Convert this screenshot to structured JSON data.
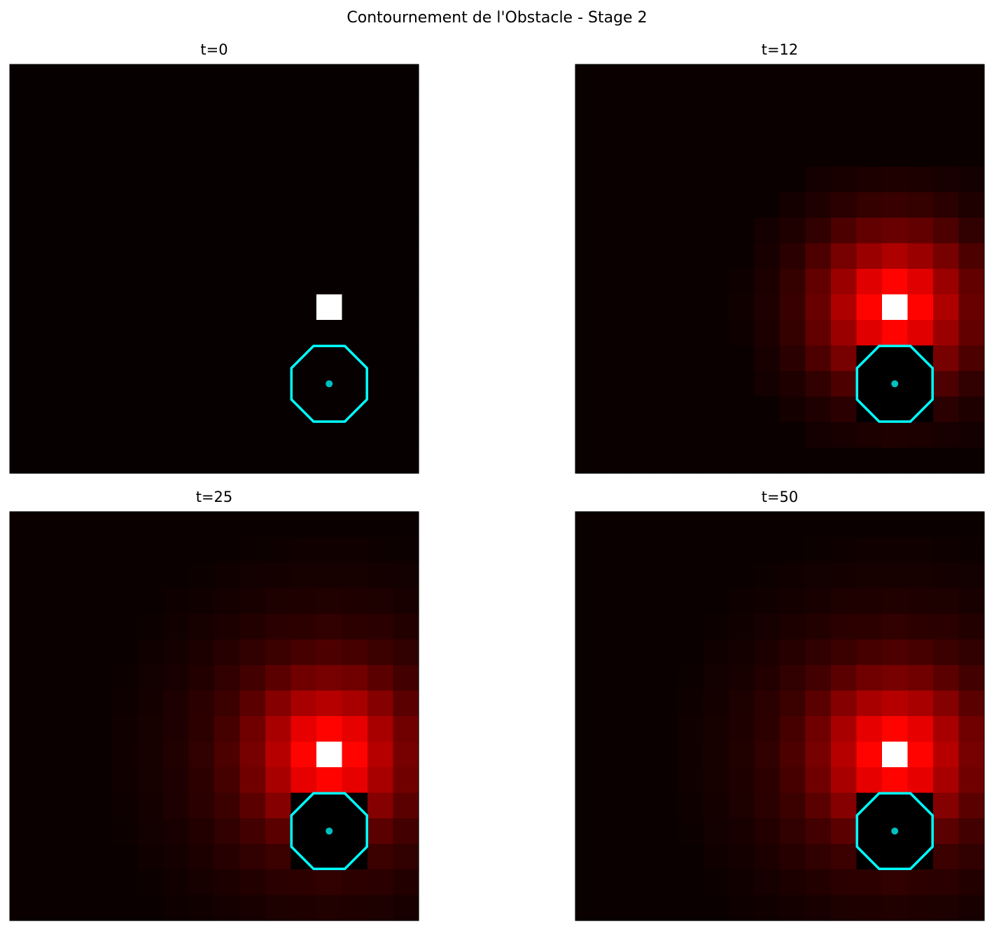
{
  "title": "Contournement de l'Obstacle - Stage 2",
  "chart_data": [
    {
      "type": "heatmap",
      "title": "t=0",
      "cmap": "hot",
      "vmin": 0,
      "vmax": 1,
      "obstacle": {
        "x": 12,
        "y": 12,
        "radius": 1.6,
        "color": "#00ffff"
      },
      "agent": {
        "x": 12,
        "y": 12,
        "color": "#00bfbf"
      },
      "values": [
        [
          0.01,
          0.01,
          0.01,
          0.01,
          0.01,
          0.01,
          0.01,
          0.01,
          0.01,
          0.01,
          0.01,
          0.01,
          0.01,
          0.01,
          0.01,
          0.01
        ],
        [
          0.01,
          0.01,
          0.01,
          0.01,
          0.01,
          0.01,
          0.01,
          0.01,
          0.01,
          0.01,
          0.01,
          0.01,
          0.01,
          0.01,
          0.01,
          0.01
        ],
        [
          0.01,
          0.01,
          0.01,
          0.01,
          0.01,
          0.01,
          0.01,
          0.01,
          0.01,
          0.01,
          0.01,
          0.01,
          0.01,
          0.01,
          0.01,
          0.01
        ],
        [
          0.01,
          0.01,
          0.01,
          0.01,
          0.01,
          0.01,
          0.01,
          0.01,
          0.01,
          0.01,
          0.01,
          0.01,
          0.01,
          0.01,
          0.01,
          0.01
        ],
        [
          0.01,
          0.01,
          0.01,
          0.01,
          0.01,
          0.01,
          0.01,
          0.01,
          0.01,
          0.01,
          0.01,
          0.01,
          0.01,
          0.01,
          0.01,
          0.01
        ],
        [
          0.01,
          0.01,
          0.01,
          0.01,
          0.01,
          0.01,
          0.01,
          0.01,
          0.01,
          0.01,
          0.01,
          0.01,
          0.01,
          0.01,
          0.01,
          0.01
        ],
        [
          0.01,
          0.01,
          0.01,
          0.01,
          0.01,
          0.01,
          0.01,
          0.01,
          0.01,
          0.01,
          0.01,
          0.01,
          0.01,
          0.01,
          0.01,
          0.01
        ],
        [
          0.01,
          0.01,
          0.01,
          0.01,
          0.01,
          0.01,
          0.01,
          0.01,
          0.01,
          0.01,
          0.01,
          0.01,
          0.01,
          0.01,
          0.01,
          0.01
        ],
        [
          0.01,
          0.01,
          0.01,
          0.01,
          0.01,
          0.01,
          0.01,
          0.01,
          0.01,
          0.01,
          0.01,
          0.01,
          0.01,
          0.01,
          0.01,
          0.01
        ],
        [
          0.01,
          0.01,
          0.01,
          0.01,
          0.01,
          0.01,
          0.01,
          0.01,
          0.01,
          0.01,
          0.01,
          0.01,
          1,
          0.01,
          0.01,
          0.01
        ],
        [
          0.01,
          0.01,
          0.01,
          0.01,
          0.01,
          0.01,
          0.01,
          0.01,
          0.01,
          0.01,
          0.01,
          0.01,
          0.01,
          0.01,
          0.01,
          0.01
        ],
        [
          0.01,
          0.01,
          0.01,
          0.01,
          0.01,
          0.01,
          0.01,
          0.01,
          0.01,
          0.01,
          0.01,
          0.01,
          0.01,
          0.01,
          0.01,
          0.01
        ],
        [
          0.01,
          0.01,
          0.01,
          0.01,
          0.01,
          0.01,
          0.01,
          0.01,
          0.01,
          0.01,
          0.01,
          0.01,
          0.01,
          0.01,
          0.01,
          0.01
        ],
        [
          0.01,
          0.01,
          0.01,
          0.01,
          0.01,
          0.01,
          0.01,
          0.01,
          0.01,
          0.01,
          0.01,
          0.01,
          0.01,
          0.01,
          0.01,
          0.01
        ],
        [
          0.01,
          0.01,
          0.01,
          0.01,
          0.01,
          0.01,
          0.01,
          0.01,
          0.01,
          0.01,
          0.01,
          0.01,
          0.01,
          0.01,
          0.01,
          0.01
        ],
        [
          0.01,
          0.01,
          0.01,
          0.01,
          0.01,
          0.01,
          0.01,
          0.01,
          0.01,
          0.01,
          0.01,
          0.01,
          0.01,
          0.01,
          0.01,
          0.01
        ]
      ]
    },
    {
      "type": "heatmap",
      "title": "t=12",
      "cmap": "hot",
      "vmin": 0,
      "vmax": 1,
      "obstacle": {
        "x": 12,
        "y": 12,
        "radius": 1.6,
        "color": "#00ffff"
      },
      "agent": {
        "x": 12,
        "y": 12,
        "color": "#00bfbf"
      },
      "values": [
        [
          0.015,
          0.015,
          0.015,
          0.015,
          0.015,
          0.015,
          0.015,
          0.015,
          0.015,
          0.015,
          0.015,
          0.015,
          0.015,
          0.015,
          0.015,
          0.015
        ],
        [
          0.015,
          0.015,
          0.015,
          0.015,
          0.015,
          0.015,
          0.015,
          0.015,
          0.015,
          0.015,
          0.015,
          0.015,
          0.015,
          0.015,
          0.015,
          0.015
        ],
        [
          0.015,
          0.015,
          0.015,
          0.015,
          0.015,
          0.015,
          0.015,
          0.015,
          0.015,
          0.015,
          0.015,
          0.015,
          0.015,
          0.015,
          0.015,
          0.015
        ],
        [
          0.015,
          0.015,
          0.015,
          0.015,
          0.015,
          0.015,
          0.015,
          0.015,
          0.015,
          0.015,
          0.015,
          0.015,
          0.015,
          0.015,
          0.015,
          0.015
        ],
        [
          0.015,
          0.015,
          0.015,
          0.015,
          0.015,
          0.015,
          0.015,
          0.015,
          0.015,
          0.028,
          0.035,
          0.04,
          0.045,
          0.04,
          0.035,
          0.028
        ],
        [
          0.015,
          0.015,
          0.015,
          0.015,
          0.015,
          0.015,
          0.015,
          0.015,
          0.03,
          0.045,
          0.06,
          0.075,
          0.08,
          0.075,
          0.06,
          0.045
        ],
        [
          0.015,
          0.015,
          0.015,
          0.015,
          0.015,
          0.015,
          0.015,
          0.028,
          0.045,
          0.07,
          0.11,
          0.14,
          0.15,
          0.14,
          0.11,
          0.07
        ],
        [
          0.015,
          0.015,
          0.015,
          0.015,
          0.015,
          0.015,
          0.015,
          0.035,
          0.06,
          0.11,
          0.17,
          0.22,
          0.25,
          0.22,
          0.17,
          0.11
        ],
        [
          0.015,
          0.015,
          0.015,
          0.015,
          0.015,
          0.015,
          0.02,
          0.04,
          0.075,
          0.14,
          0.22,
          0.32,
          0.37,
          0.32,
          0.22,
          0.14
        ],
        [
          0.015,
          0.015,
          0.015,
          0.015,
          0.015,
          0.015,
          0.025,
          0.045,
          0.08,
          0.15,
          0.25,
          0.37,
          1,
          0.37,
          0.25,
          0.15
        ],
        [
          0.015,
          0.015,
          0.015,
          0.015,
          0.015,
          0.015,
          0.02,
          0.04,
          0.075,
          0.14,
          0.22,
          0.32,
          0.37,
          0.32,
          0.22,
          0.14
        ],
        [
          0.015,
          0.015,
          0.015,
          0.015,
          0.015,
          0.015,
          0.015,
          0.035,
          0.06,
          0.11,
          0.17,
          0,
          0,
          0,
          0.17,
          0.11
        ],
        [
          0.015,
          0.015,
          0.015,
          0.015,
          0.015,
          0.015,
          0.015,
          0.028,
          0.045,
          0.07,
          0.11,
          0,
          0,
          0,
          0.11,
          0.07
        ],
        [
          0.015,
          0.015,
          0.015,
          0.015,
          0.015,
          0.015,
          0.015,
          0.015,
          0.03,
          0.045,
          0.06,
          0,
          0,
          0,
          0.06,
          0.045
        ],
        [
          0.015,
          0.015,
          0.015,
          0.015,
          0.015,
          0.015,
          0.015,
          0.015,
          0.015,
          0.028,
          0.035,
          0.04,
          0.045,
          0.04,
          0.035,
          0.028
        ],
        [
          0.015,
          0.015,
          0.015,
          0.015,
          0.015,
          0.015,
          0.015,
          0.015,
          0.015,
          0.015,
          0.015,
          0.015,
          0.015,
          0.015,
          0.015,
          0.015
        ]
      ]
    },
    {
      "type": "heatmap",
      "title": "t=25",
      "cmap": "hot",
      "vmin": 0,
      "vmax": 1,
      "obstacle": {
        "x": 12,
        "y": 12,
        "radius": 1.6,
        "color": "#00ffff"
      },
      "agent": {
        "x": 12,
        "y": 12,
        "color": "#00bfbf"
      },
      "values": [
        [
          0.015,
          0.015,
          0.015,
          0.015,
          0.015,
          0.015,
          0.015,
          0.015,
          0.015,
          0.015,
          0.015,
          0.015,
          0.015,
          0.015,
          0.015,
          0.015
        ],
        [
          0.015,
          0.015,
          0.015,
          0.015,
          0.015,
          0.015,
          0.015,
          0.015,
          0.015,
          0.019,
          0.022,
          0.023,
          0.024,
          0.023,
          0.022,
          0.019
        ],
        [
          0.015,
          0.015,
          0.015,
          0.015,
          0.015,
          0.015,
          0.015,
          0.019,
          0.023,
          0.027,
          0.03,
          0.032,
          0.033,
          0.032,
          0.03,
          0.027
        ],
        [
          0.015,
          0.015,
          0.015,
          0.015,
          0.015,
          0.015,
          0.02,
          0.025,
          0.03,
          0.036,
          0.042,
          0.045,
          0.047,
          0.045,
          0.042,
          0.036
        ],
        [
          0.015,
          0.015,
          0.015,
          0.015,
          0.015,
          0.019,
          0.025,
          0.032,
          0.04,
          0.05,
          0.06,
          0.065,
          0.07,
          0.065,
          0.06,
          0.05
        ],
        [
          0.015,
          0.015,
          0.015,
          0.015,
          0.015,
          0.023,
          0.03,
          0.04,
          0.055,
          0.07,
          0.085,
          0.1,
          0.11,
          0.1,
          0.085,
          0.07
        ],
        [
          0.015,
          0.015,
          0.015,
          0.015,
          0.019,
          0.027,
          0.036,
          0.05,
          0.07,
          0.095,
          0.13,
          0.16,
          0.17,
          0.16,
          0.13,
          0.095
        ],
        [
          0.015,
          0.015,
          0.015,
          0.015,
          0.022,
          0.03,
          0.042,
          0.06,
          0.085,
          0.13,
          0.19,
          0.24,
          0.26,
          0.24,
          0.19,
          0.13
        ],
        [
          0.015,
          0.015,
          0.015,
          0.015,
          0.023,
          0.032,
          0.045,
          0.065,
          0.1,
          0.16,
          0.24,
          0.33,
          0.37,
          0.33,
          0.24,
          0.16
        ],
        [
          0.015,
          0.015,
          0.015,
          0.015,
          0.024,
          0.033,
          0.047,
          0.07,
          0.11,
          0.17,
          0.26,
          0.37,
          1,
          0.37,
          0.26,
          0.17
        ],
        [
          0.015,
          0.015,
          0.015,
          0.015,
          0.023,
          0.032,
          0.045,
          0.065,
          0.1,
          0.16,
          0.24,
          0.33,
          0.37,
          0.33,
          0.24,
          0.16
        ],
        [
          0.015,
          0.015,
          0.015,
          0.015,
          0.022,
          0.03,
          0.042,
          0.06,
          0.085,
          0.13,
          0.19,
          0,
          0,
          0,
          0.19,
          0.13
        ],
        [
          0.015,
          0.015,
          0.015,
          0.015,
          0.019,
          0.027,
          0.036,
          0.05,
          0.07,
          0.095,
          0.13,
          0,
          0,
          0,
          0.13,
          0.095
        ],
        [
          0.015,
          0.015,
          0.015,
          0.015,
          0.015,
          0.023,
          0.03,
          0.04,
          0.055,
          0.07,
          0.085,
          0,
          0,
          0,
          0.085,
          0.07
        ],
        [
          0.015,
          0.015,
          0.015,
          0.015,
          0.015,
          0.019,
          0.025,
          0.032,
          0.04,
          0.05,
          0.06,
          0.065,
          0.07,
          0.065,
          0.06,
          0.05
        ],
        [
          0.015,
          0.015,
          0.015,
          0.015,
          0.015,
          0.015,
          0.02,
          0.025,
          0.03,
          0.036,
          0.042,
          0.045,
          0.047,
          0.045,
          0.042,
          0.036
        ]
      ]
    },
    {
      "type": "heatmap",
      "title": "t=50",
      "cmap": "hot",
      "vmin": 0,
      "vmax": 1,
      "obstacle": {
        "x": 12,
        "y": 12,
        "radius": 1.6,
        "color": "#00ffff"
      },
      "agent": {
        "x": 12,
        "y": 12,
        "color": "#00bfbf"
      },
      "values": [
        [
          0.015,
          0.015,
          0.015,
          0.015,
          0.015,
          0.015,
          0.015,
          0.015,
          0.015,
          0.015,
          0.015,
          0.015,
          0.015,
          0.015,
          0.015,
          0.015
        ],
        [
          0.015,
          0.015,
          0.015,
          0.015,
          0.015,
          0.015,
          0.015,
          0.015,
          0.015,
          0.019,
          0.022,
          0.023,
          0.024,
          0.023,
          0.022,
          0.019
        ],
        [
          0.015,
          0.015,
          0.015,
          0.015,
          0.015,
          0.015,
          0.015,
          0.019,
          0.023,
          0.027,
          0.03,
          0.032,
          0.033,
          0.032,
          0.03,
          0.027
        ],
        [
          0.015,
          0.015,
          0.015,
          0.015,
          0.015,
          0.015,
          0.02,
          0.025,
          0.03,
          0.036,
          0.042,
          0.045,
          0.047,
          0.045,
          0.042,
          0.036
        ],
        [
          0.015,
          0.015,
          0.015,
          0.015,
          0.015,
          0.019,
          0.025,
          0.032,
          0.04,
          0.05,
          0.06,
          0.065,
          0.07,
          0.065,
          0.06,
          0.05
        ],
        [
          0.015,
          0.015,
          0.015,
          0.015,
          0.015,
          0.023,
          0.03,
          0.04,
          0.055,
          0.07,
          0.085,
          0.1,
          0.11,
          0.1,
          0.085,
          0.07
        ],
        [
          0.015,
          0.015,
          0.015,
          0.015,
          0.019,
          0.027,
          0.036,
          0.05,
          0.07,
          0.095,
          0.13,
          0.16,
          0.17,
          0.16,
          0.13,
          0.095
        ],
        [
          0.015,
          0.015,
          0.015,
          0.015,
          0.022,
          0.03,
          0.042,
          0.06,
          0.085,
          0.13,
          0.19,
          0.24,
          0.26,
          0.24,
          0.19,
          0.13
        ],
        [
          0.015,
          0.015,
          0.015,
          0.015,
          0.023,
          0.032,
          0.045,
          0.065,
          0.1,
          0.16,
          0.24,
          0.33,
          0.37,
          0.33,
          0.24,
          0.16
        ],
        [
          0.015,
          0.015,
          0.015,
          0.015,
          0.024,
          0.033,
          0.047,
          0.07,
          0.11,
          0.17,
          0.26,
          0.37,
          1,
          0.37,
          0.26,
          0.17
        ],
        [
          0.015,
          0.015,
          0.015,
          0.015,
          0.023,
          0.032,
          0.045,
          0.065,
          0.1,
          0.16,
          0.24,
          0.33,
          0.37,
          0.33,
          0.24,
          0.16
        ],
        [
          0.015,
          0.015,
          0.015,
          0.015,
          0.022,
          0.03,
          0.042,
          0.06,
          0.085,
          0.13,
          0.19,
          0,
          0,
          0,
          0.19,
          0.13
        ],
        [
          0.015,
          0.015,
          0.015,
          0.015,
          0.019,
          0.027,
          0.036,
          0.05,
          0.07,
          0.095,
          0.13,
          0,
          0,
          0,
          0.13,
          0.095
        ],
        [
          0.015,
          0.015,
          0.015,
          0.015,
          0.015,
          0.023,
          0.03,
          0.04,
          0.055,
          0.07,
          0.085,
          0,
          0,
          0,
          0.085,
          0.07
        ],
        [
          0.015,
          0.015,
          0.015,
          0.015,
          0.015,
          0.019,
          0.025,
          0.032,
          0.04,
          0.05,
          0.06,
          0.065,
          0.07,
          0.065,
          0.06,
          0.05
        ],
        [
          0.015,
          0.015,
          0.015,
          0.015,
          0.015,
          0.015,
          0.02,
          0.025,
          0.03,
          0.036,
          0.042,
          0.045,
          0.047,
          0.045,
          0.042,
          0.036
        ]
      ]
    }
  ]
}
